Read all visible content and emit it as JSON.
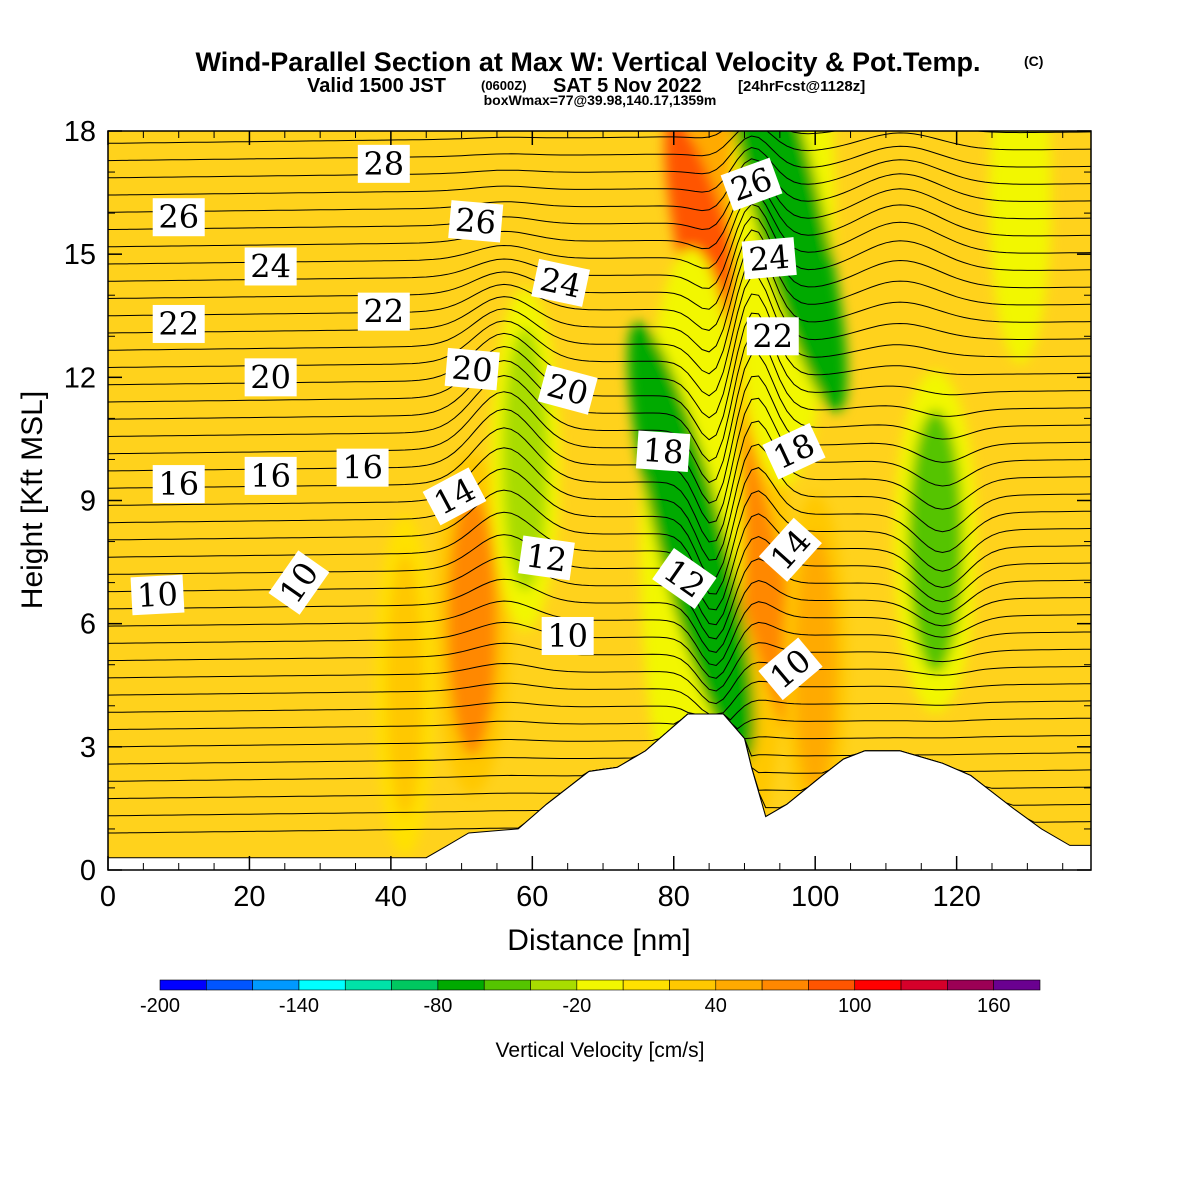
{
  "chart_data": {
    "type": "heatmap",
    "title": "Wind-Parallel Section at Max W: Vertical Velocity & Pot.Temp.",
    "title_mark": "(C)",
    "subtitle": {
      "prefix": "Valid 1500 JST",
      "utc": "(0600Z)",
      "date": "SAT 5 Nov 2022",
      "forecast": "[24hrFcst@1128z]"
    },
    "info": "boxWmax=77@39.98,140.17,1359m",
    "xlabel": "Distance [nm]",
    "ylabel": "Height [Kft MSL]",
    "xlim": [
      0,
      139
    ],
    "ylim": [
      0,
      18
    ],
    "x_ticks": [
      0,
      20,
      40,
      60,
      80,
      100,
      120
    ],
    "y_ticks": [
      0,
      3,
      6,
      9,
      12,
      15,
      18
    ],
    "colorbar": {
      "label": "Vertical Velocity [cm/s]",
      "min": -200,
      "max": 180,
      "step": 20,
      "tick_labels": [
        -200,
        -140,
        -80,
        -20,
        40,
        100,
        160
      ],
      "colors": [
        "#0000ff",
        "#0055ff",
        "#0099ff",
        "#00ffff",
        "#00e2a8",
        "#00c760",
        "#00aa00",
        "#55c400",
        "#a8dc00",
        "#f2f700",
        "#ffe100",
        "#ffc800",
        "#ffaa00",
        "#ff8800",
        "#ff5500",
        "#ff0000",
        "#d5002a",
        "#9c0055",
        "#6a0090"
      ]
    },
    "velocity_features": [
      {
        "x": 51.5,
        "y": 6.0,
        "w": 60,
        "kind": "updraft"
      },
      {
        "x": 42.0,
        "y": 4.5,
        "w": 30,
        "kind": "updraft"
      },
      {
        "x": 87.5,
        "y": 13.0,
        "w": 90,
        "kind": "updraft"
      },
      {
        "x": 91.0,
        "y": 8.0,
        "w": 60,
        "kind": "updraft"
      },
      {
        "x": 82.5,
        "y": 8.0,
        "w": -80,
        "kind": "downdraft"
      },
      {
        "x": 95.5,
        "y": 16.5,
        "w": -80,
        "kind": "downdraft"
      },
      {
        "x": 59.0,
        "y": 10.0,
        "w": -30,
        "kind": "downdraft"
      },
      {
        "x": 117.0,
        "y": 8.0,
        "w": -50,
        "kind": "downdraft"
      },
      {
        "x": 129.0,
        "y": 16.5,
        "w": -20,
        "kind": "downdraft"
      },
      {
        "x": 100.0,
        "y": 5.0,
        "w": 40,
        "kind": "updraft"
      }
    ],
    "terrain": [
      [
        0,
        0.3
      ],
      [
        45,
        0.3
      ],
      [
        48,
        0.6
      ],
      [
        51,
        0.9
      ],
      [
        58,
        1.0
      ],
      [
        62,
        1.6
      ],
      [
        68,
        2.4
      ],
      [
        72,
        2.5
      ],
      [
        76,
        2.9
      ],
      [
        82,
        3.8
      ],
      [
        87,
        3.8
      ],
      [
        90,
        3.2
      ],
      [
        91,
        2.5
      ],
      [
        93,
        1.3
      ],
      [
        96,
        1.6
      ],
      [
        101,
        2.3
      ],
      [
        104,
        2.7
      ],
      [
        107,
        2.9
      ],
      [
        112,
        2.9
      ],
      [
        118,
        2.6
      ],
      [
        122,
        2.3
      ],
      [
        125,
        1.9
      ],
      [
        128,
        1.5
      ],
      [
        132,
        1.0
      ],
      [
        136,
        0.6
      ],
      [
        139,
        0.6
      ]
    ],
    "theta_contours": {
      "label_values": [
        10,
        12,
        14,
        16,
        18,
        20,
        22,
        24,
        26,
        28
      ],
      "labels": [
        {
          "text": "10",
          "x": 7,
          "y": 6.7,
          "angle": -3
        },
        {
          "text": "10",
          "x": 27,
          "y": 7.0,
          "angle": -55
        },
        {
          "text": "10",
          "x": 65,
          "y": 5.7,
          "angle": 0
        },
        {
          "text": "10",
          "x": 96.5,
          "y": 4.9,
          "angle": -40
        },
        {
          "text": "12",
          "x": 62,
          "y": 7.6,
          "angle": 8
        },
        {
          "text": "12",
          "x": 81.5,
          "y": 7.1,
          "angle": 35
        },
        {
          "text": "14",
          "x": 49,
          "y": 9.1,
          "angle": -28
        },
        {
          "text": "14",
          "x": 96.5,
          "y": 7.8,
          "angle": -48
        },
        {
          "text": "16",
          "x": 10,
          "y": 9.4,
          "angle": 0
        },
        {
          "text": "16",
          "x": 23,
          "y": 9.6,
          "angle": 0
        },
        {
          "text": "16",
          "x": 36,
          "y": 9.8,
          "angle": 0
        },
        {
          "text": "18",
          "x": 78.5,
          "y": 10.2,
          "angle": 4
        },
        {
          "text": "18",
          "x": 97,
          "y": 10.2,
          "angle": -25
        },
        {
          "text": "20",
          "x": 23,
          "y": 12.0,
          "angle": 0
        },
        {
          "text": "20",
          "x": 51.5,
          "y": 12.2,
          "angle": 5
        },
        {
          "text": "20",
          "x": 65,
          "y": 11.7,
          "angle": 15
        },
        {
          "text": "22",
          "x": 10,
          "y": 13.3,
          "angle": 0
        },
        {
          "text": "22",
          "x": 39,
          "y": 13.6,
          "angle": 0
        },
        {
          "text": "22",
          "x": 94,
          "y": 13.0,
          "angle": 0
        },
        {
          "text": "24",
          "x": 23,
          "y": 14.7,
          "angle": 0
        },
        {
          "text": "24",
          "x": 64,
          "y": 14.3,
          "angle": 12
        },
        {
          "text": "24",
          "x": 93.5,
          "y": 14.9,
          "angle": -5
        },
        {
          "text": "26",
          "x": 10,
          "y": 15.9,
          "angle": 0
        },
        {
          "text": "26",
          "x": 52,
          "y": 15.8,
          "angle": 5
        },
        {
          "text": "26",
          "x": 91,
          "y": 16.7,
          "angle": -20
        },
        {
          "text": "28",
          "x": 39,
          "y": 17.2,
          "angle": 0
        }
      ]
    }
  }
}
